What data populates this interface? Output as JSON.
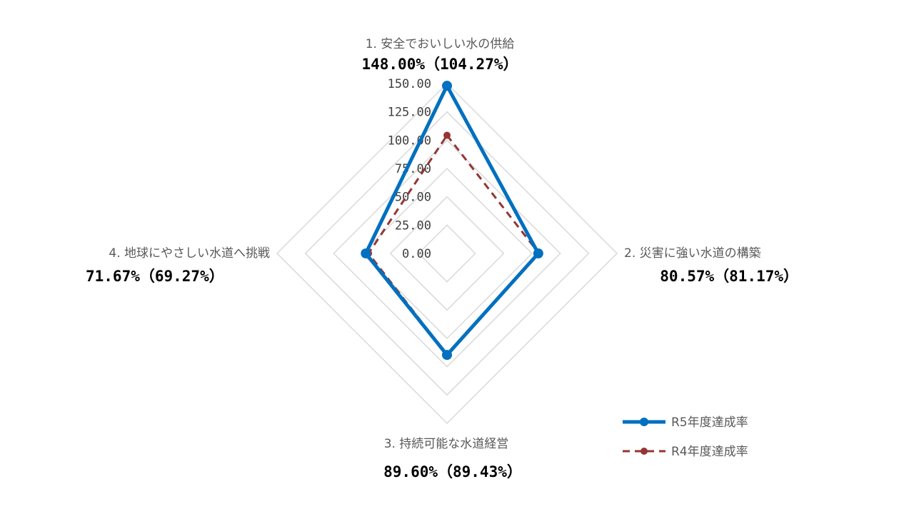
{
  "chart_data": {
    "type": "radar",
    "categories": [
      "1. 安全でおいしい水の供給",
      "2. 災害に強い水道の構築",
      "3. 持続可能な水道経営",
      "4. 地球にやさしい水道へ挑戦"
    ],
    "value_labels": [
      "148.00%（104.27%）",
      "80.57%（81.17%）",
      "89.60%（89.43%）",
      "71.67%（69.27%）"
    ],
    "ticks": [
      "0.00",
      "25.00",
      "50.00",
      "75.00",
      "100.00",
      "125.00",
      "150.00"
    ],
    "rlim": [
      0,
      150
    ],
    "series": [
      {
        "name": "R5年度達成率",
        "values": [
          148.0,
          80.57,
          89.6,
          71.67
        ],
        "color": "#0070C0",
        "style": "solid"
      },
      {
        "name": "R4年度達成率",
        "values": [
          104.27,
          81.17,
          89.43,
          69.27
        ],
        "color": "#943634",
        "style": "dashed"
      }
    ],
    "legend_position": "bottom-right",
    "grid": true
  }
}
